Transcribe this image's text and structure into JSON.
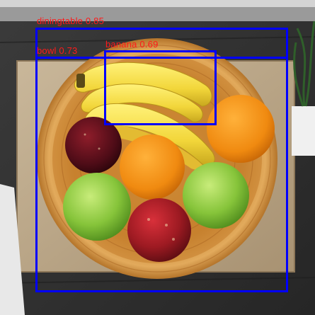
{
  "detections": [
    {
      "label": "diningtable",
      "score": "0.85"
    },
    {
      "label": "bowl",
      "score": "0.73"
    },
    {
      "label": "banana",
      "score": "0.69"
    }
  ],
  "colors": {
    "box": "#0000ff",
    "label_text": "#ff1a1a"
  }
}
